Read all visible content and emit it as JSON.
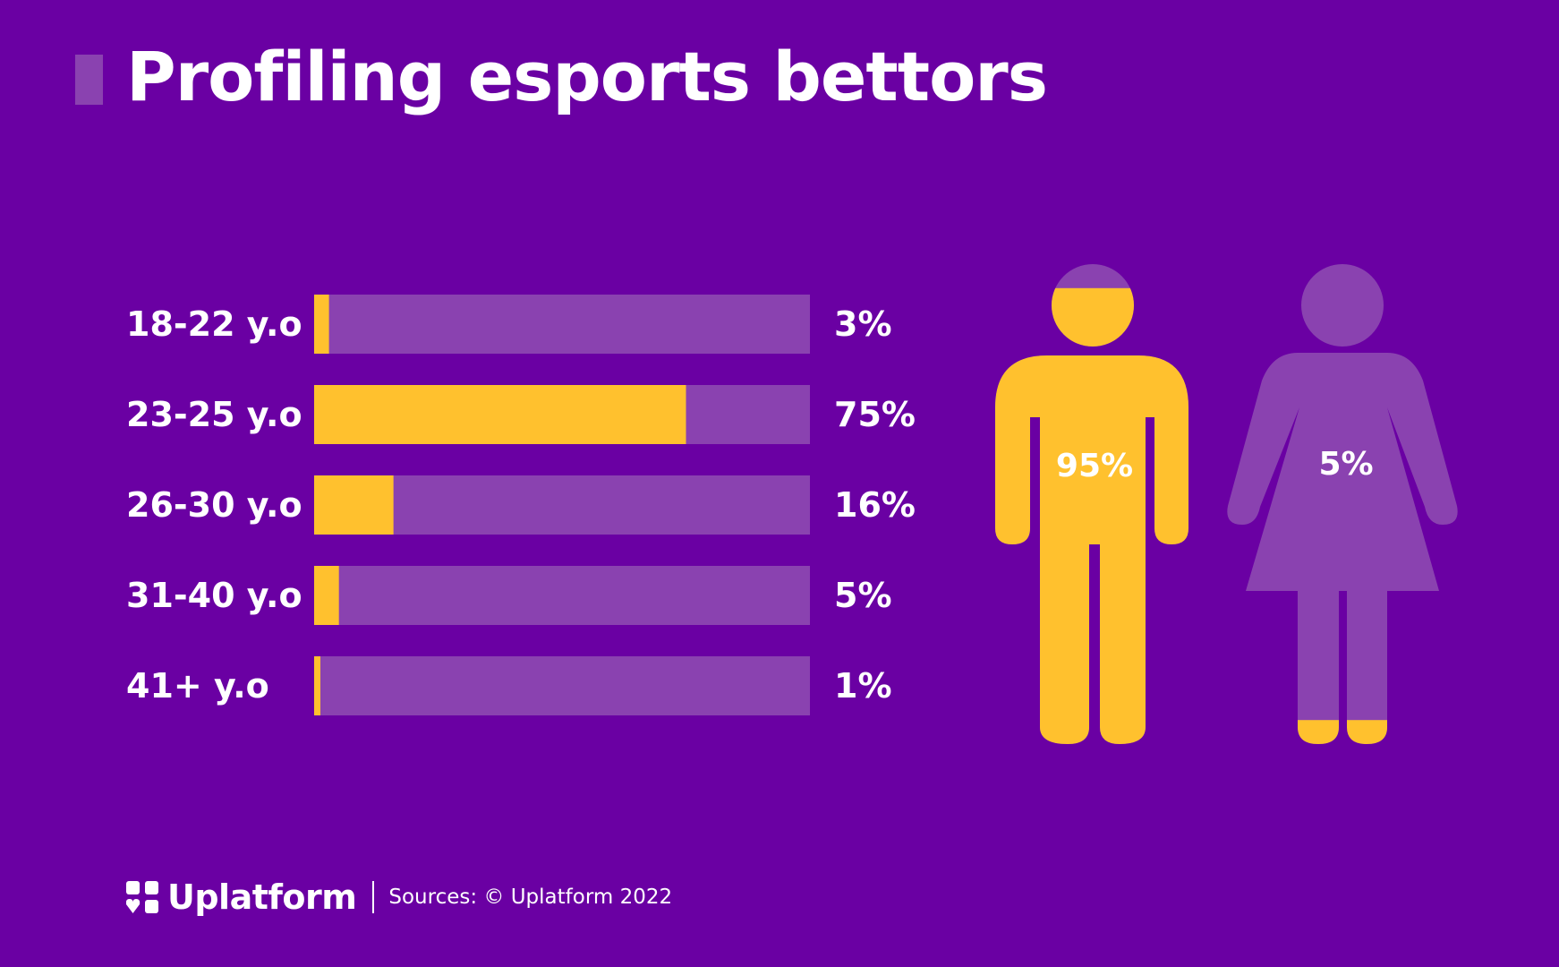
{
  "title": "Profiling esports bettors",
  "colors": {
    "background": "#6a00a3",
    "track": "#8a42b0",
    "highlight": "#ffc12e",
    "text": "#ffffff"
  },
  "chart_data": [
    {
      "type": "bar",
      "orientation": "horizontal",
      "categories": [
        "18-22 y.o",
        "23-25 y.o",
        "26-30 y.o",
        "31-40 y.o",
        "41+ y.o"
      ],
      "values": [
        3,
        75,
        16,
        5,
        1
      ],
      "value_labels": [
        "3%",
        "75%",
        "16%",
        "5%",
        "1%"
      ],
      "xlim": [
        0,
        100
      ],
      "grid": false
    },
    {
      "type": "pictogram",
      "categories": [
        "male",
        "female"
      ],
      "values": [
        95,
        5
      ],
      "value_labels": [
        "95%",
        "5%"
      ]
    }
  ],
  "footer": {
    "brand": "Uplatform",
    "source": "Sources: © Uplatform 2022"
  }
}
